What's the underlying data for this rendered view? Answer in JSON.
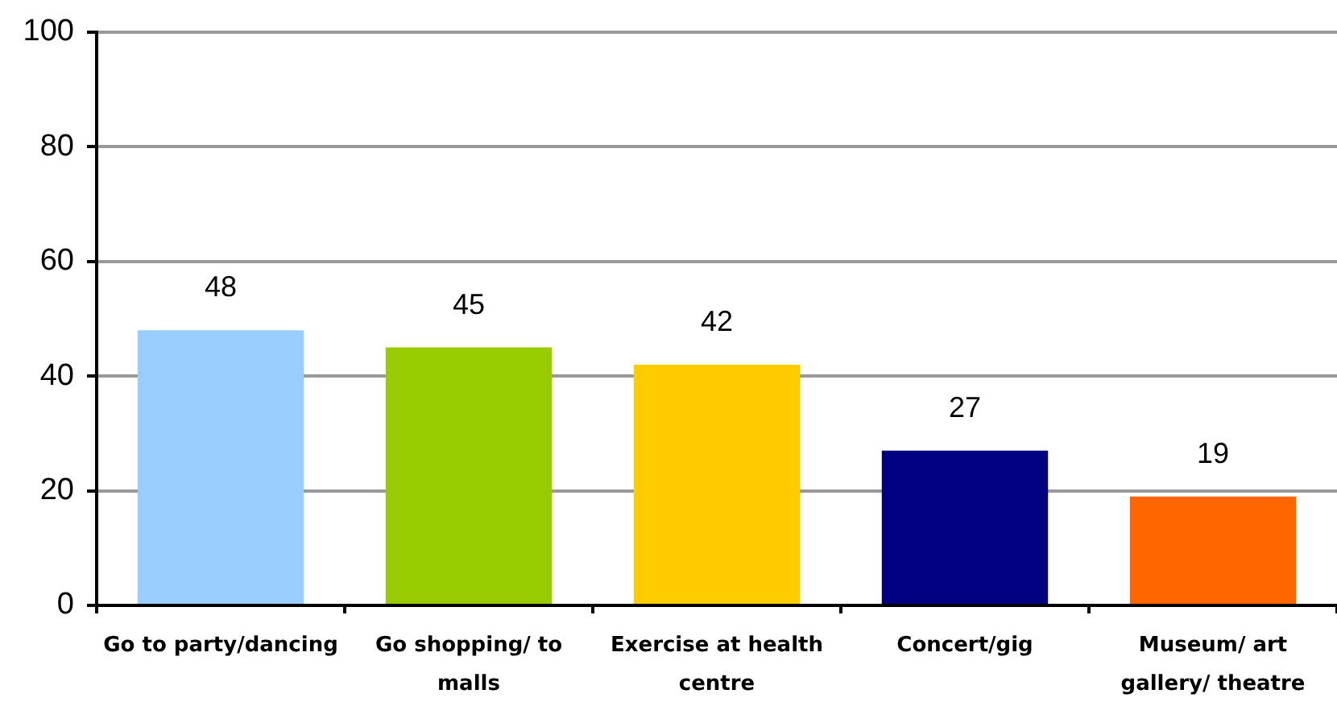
{
  "chart_data": {
    "type": "bar",
    "categories": [
      "Go to party/dancing",
      "Go shopping/ to malls",
      "Exercise at health centre",
      "Concert/gig",
      "Museum/ art gallery/ theatre"
    ],
    "values": [
      48,
      45,
      42,
      27,
      19
    ],
    "colors": [
      "#99ccff",
      "#99cc00",
      "#ffcc00",
      "#000080",
      "#ff6600"
    ],
    "ylim": [
      0,
      100
    ],
    "yticks": [
      0,
      20,
      40,
      60,
      80,
      100
    ],
    "grid": "y",
    "data_labels": true
  }
}
